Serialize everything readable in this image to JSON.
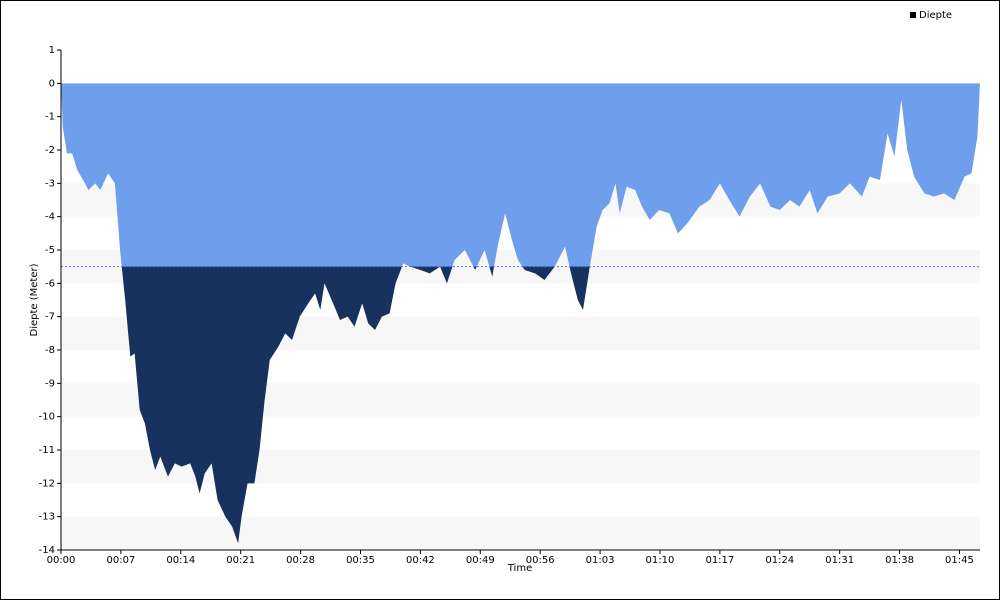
{
  "chart_data": {
    "type": "area",
    "title": null,
    "x_label": "Time",
    "y_label": "Diepte (Meter)",
    "x": [
      0,
      0.2,
      0.7,
      1.3,
      1.9,
      2.8,
      3.2,
      4.0,
      4.6,
      5.5,
      6.3,
      6.9,
      7.5,
      8.1,
      8.6,
      9.2,
      9.8,
      10.4,
      11.0,
      11.6,
      12.5,
      13.3,
      14.1,
      15.1,
      15.7,
      16.2,
      16.8,
      17.6,
      18.3,
      19.2,
      20.0,
      20.7,
      21.1,
      21.8,
      22.6,
      23.2,
      23.8,
      24.4,
      25.4,
      26.2,
      27.0,
      27.9,
      28.9,
      29.7,
      30.3,
      30.8,
      31.8,
      32.6,
      33.5,
      34.3,
      35.2,
      35.9,
      36.7,
      37.5,
      38.4,
      39.1,
      40.0,
      40.8,
      42.0,
      43.1,
      44.3,
      45.1,
      46.0,
      47.2,
      48.4,
      49.5,
      50.4,
      51.1,
      51.9,
      52.7,
      53.4,
      54.2,
      55.4,
      56.5,
      57.7,
      58.9,
      59.7,
      60.4,
      61.0,
      61.8,
      62.6,
      63.3,
      64.1,
      64.8,
      65.3,
      66.1,
      67.1,
      67.9,
      68.8,
      69.9,
      71.1,
      72.1,
      73.2,
      74.6,
      75.8,
      77.0,
      78.1,
      79.3,
      80.5,
      81.7,
      82.9,
      84.0,
      85.2,
      86.3,
      87.5,
      88.4,
      89.6,
      91.0,
      92.2,
      93.6,
      94.5,
      95.7,
      96.6,
      97.4,
      98.2,
      98.9,
      99.7,
      100.9,
      102.0,
      103.2,
      104.4,
      105.6,
      106.4,
      107.1,
      107.4
    ],
    "series": [
      {
        "name": "Diepte",
        "color": "#6f9fec",
        "values": [
          0,
          -1.3,
          -2.1,
          -2.1,
          -2.6,
          -3.0,
          -3.2,
          -3.0,
          -3.2,
          -2.7,
          -3.0,
          -5.0,
          -6.5,
          -8.2,
          -8.1,
          -9.8,
          -10.2,
          -11.0,
          -11.6,
          -11.2,
          -11.8,
          -11.4,
          -11.5,
          -11.4,
          -11.8,
          -12.3,
          -11.7,
          -11.4,
          -12.5,
          -13.0,
          -13.3,
          -13.8,
          -13.0,
          -12.0,
          -12.0,
          -11.0,
          -9.5,
          -8.3,
          -7.9,
          -7.5,
          -7.7,
          -7.0,
          -6.6,
          -6.3,
          -6.8,
          -6.0,
          -6.6,
          -7.1,
          -7.0,
          -7.3,
          -6.6,
          -7.2,
          -7.4,
          -7.0,
          -6.9,
          -6.0,
          -5.4,
          -5.5,
          -5.6,
          -5.7,
          -5.5,
          -6.0,
          -5.3,
          -5.0,
          -5.6,
          -5.0,
          -5.8,
          -4.8,
          -3.9,
          -4.7,
          -5.3,
          -5.6,
          -5.7,
          -5.9,
          -5.5,
          -4.9,
          -5.8,
          -6.5,
          -6.8,
          -5.5,
          -4.3,
          -3.8,
          -3.6,
          -3.0,
          -3.9,
          -3.1,
          -3.2,
          -3.7,
          -4.1,
          -3.8,
          -3.9,
          -4.5,
          -4.2,
          -3.7,
          -3.5,
          -3.0,
          -3.5,
          -4.0,
          -3.4,
          -3.0,
          -3.7,
          -3.8,
          -3.5,
          -3.7,
          -3.2,
          -3.9,
          -3.4,
          -3.3,
          -3.0,
          -3.4,
          -2.8,
          -2.9,
          -1.5,
          -2.2,
          -0.5,
          -2.0,
          -2.8,
          -3.3,
          -3.4,
          -3.3,
          -3.5,
          -2.8,
          -2.7,
          -1.6,
          0
        ]
      }
    ],
    "threshold": -5.5,
    "below_color": "#17325e",
    "threshold_color": "#5b6be8",
    "legend_color": "#000000",
    "xlim": [
      0,
      107.4
    ],
    "xticks": [
      {
        "value": 0,
        "label": "00:00"
      },
      {
        "value": 7,
        "label": "00:07"
      },
      {
        "value": 14,
        "label": "00:14"
      },
      {
        "value": 21,
        "label": "00:21"
      },
      {
        "value": 28,
        "label": "00:28"
      },
      {
        "value": 35,
        "label": "00:35"
      },
      {
        "value": 42,
        "label": "00:42"
      },
      {
        "value": 49,
        "label": "00:49"
      },
      {
        "value": 56,
        "label": "00:56"
      },
      {
        "value": 63,
        "label": "01:03"
      },
      {
        "value": 70,
        "label": "01:10"
      },
      {
        "value": 77,
        "label": "01:17"
      },
      {
        "value": 84,
        "label": "01:24"
      },
      {
        "value": 91,
        "label": "01:31"
      },
      {
        "value": 98,
        "label": "01:38"
      },
      {
        "value": 105,
        "label": "01:45"
      }
    ],
    "ylim": [
      -14,
      1
    ],
    "yticks": [
      1,
      0,
      -1,
      -2,
      -3,
      -4,
      -5,
      -6,
      -7,
      -8,
      -9,
      -10,
      -11,
      -12,
      -13,
      -14
    ],
    "grid": "bands",
    "legend": "top-right"
  }
}
